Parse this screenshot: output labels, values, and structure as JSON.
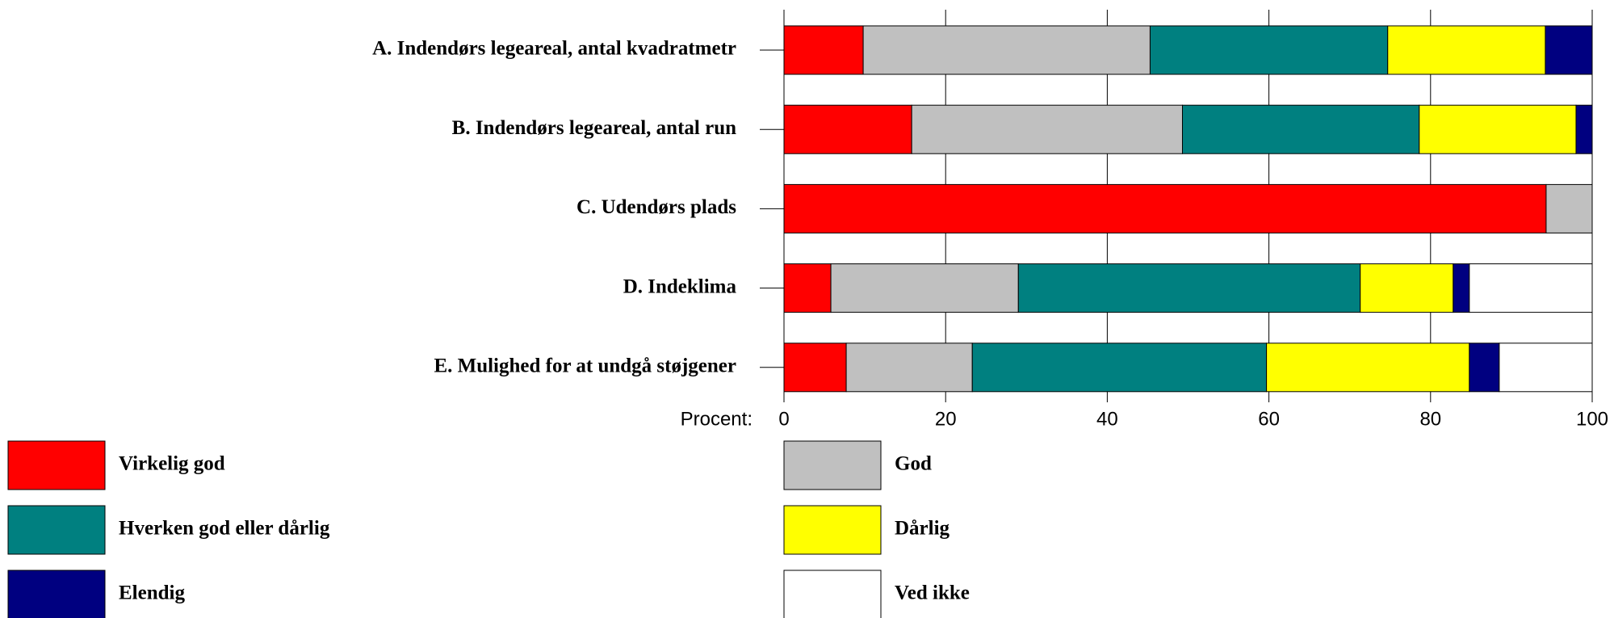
{
  "chart_data": {
    "type": "stacked-barh",
    "categories": [
      "A. Indendørs legeareal, antal kvadratmetr",
      "B. Indendørs legeareal, antal run",
      "C. Udendørs plads",
      "D. Indeklima",
      "E. Mulighed for at undgå støjgener"
    ],
    "series": [
      {
        "name": "Virkelig god",
        "color": "#ff0000",
        "values": [
          9.8,
          15.8,
          94.3,
          5.8,
          7.7
        ]
      },
      {
        "name": "God",
        "color": "#c0c0c0",
        "values": [
          35.5,
          33.5,
          5.7,
          23.2,
          15.6
        ]
      },
      {
        "name": "Hverken god eller dårlig",
        "color": "#008080",
        "values": [
          29.4,
          29.3,
          0,
          42.3,
          36.4
        ]
      },
      {
        "name": "Dårlig",
        "color": "#ffff00",
        "values": [
          19.5,
          19.4,
          0,
          11.5,
          25.1
        ]
      },
      {
        "name": "Elendig",
        "color": "#000080",
        "values": [
          5.8,
          2.0,
          0,
          2.0,
          3.7
        ]
      },
      {
        "name": "Ved ikke",
        "color": "#ffffff",
        "values": [
          0,
          0,
          0,
          15.2,
          11.5
        ]
      }
    ],
    "xlabel": "Procent:",
    "xlim": [
      0,
      100
    ],
    "xticks": [
      0,
      20,
      40,
      60,
      80,
      100
    ],
    "grid": true
  }
}
